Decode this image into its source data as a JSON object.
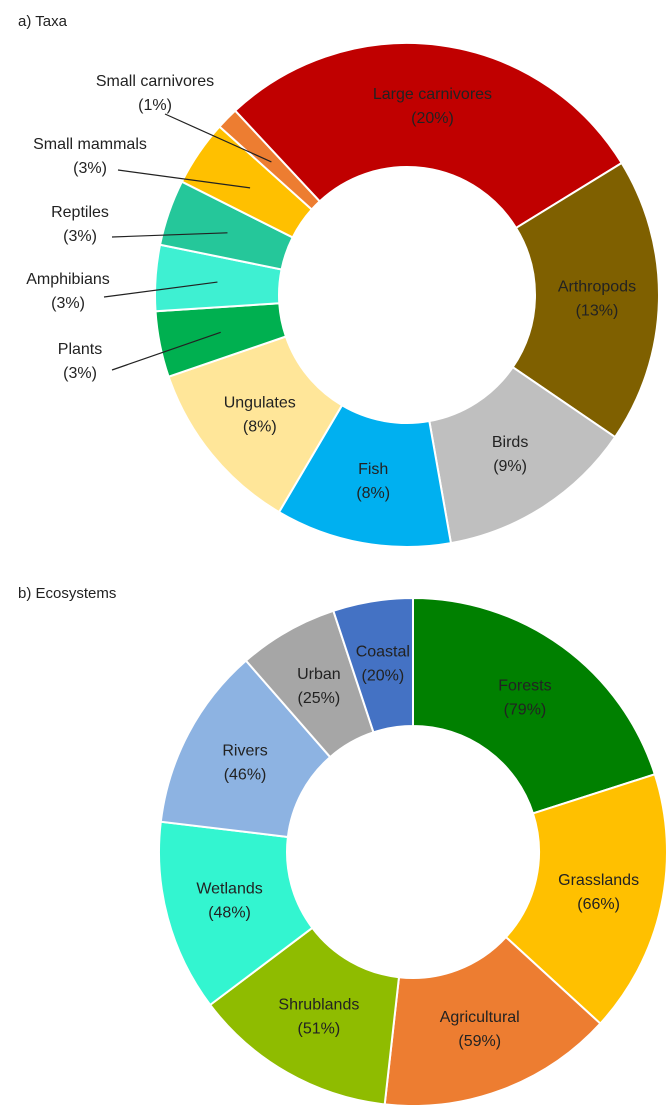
{
  "chart_data": [
    {
      "type": "donut",
      "title": "a) Taxa",
      "categories": [
        "Large carnivores",
        "Arthropods",
        "Birds",
        "Fish",
        "Ungulates",
        "Plants",
        "Amphibians",
        "Reptiles",
        "Small mammals",
        "Small carnivores"
      ],
      "values": [
        20,
        13,
        9,
        8,
        8,
        3,
        3,
        3,
        3,
        1
      ],
      "value_labels": [
        "(20%)",
        "(13%)",
        "(9%)",
        "(8%)",
        "(8%)",
        "(3%)",
        "(3%)",
        "(3%)",
        "(3%)",
        "(1%)"
      ],
      "colors": [
        "#c00000",
        "#7f6000",
        "#bfbfbf",
        "#00b0f0",
        "#ffe699",
        "#00b050",
        "#3ef0d2",
        "#25c79a",
        "#ffc000",
        "#ed7d31"
      ]
    },
    {
      "type": "donut",
      "title": "b) Ecosystems",
      "categories": [
        "Forests",
        "Grasslands",
        "Agricultural",
        "Shrublands",
        "Wetlands",
        "Rivers",
        "Urban",
        "Coastal"
      ],
      "values": [
        79,
        66,
        59,
        51,
        48,
        46,
        25,
        20
      ],
      "value_labels": [
        "(79%)",
        "(66%)",
        "(59%)",
        "(51%)",
        "(48%)",
        "(46%)",
        "(25%)",
        "(20%)"
      ],
      "colors": [
        "#008000",
        "#ffc000",
        "#ed7d31",
        "#8fbc00",
        "#33f5d0",
        "#8db3e2",
        "#a6a6a6",
        "#4472c4"
      ]
    }
  ]
}
